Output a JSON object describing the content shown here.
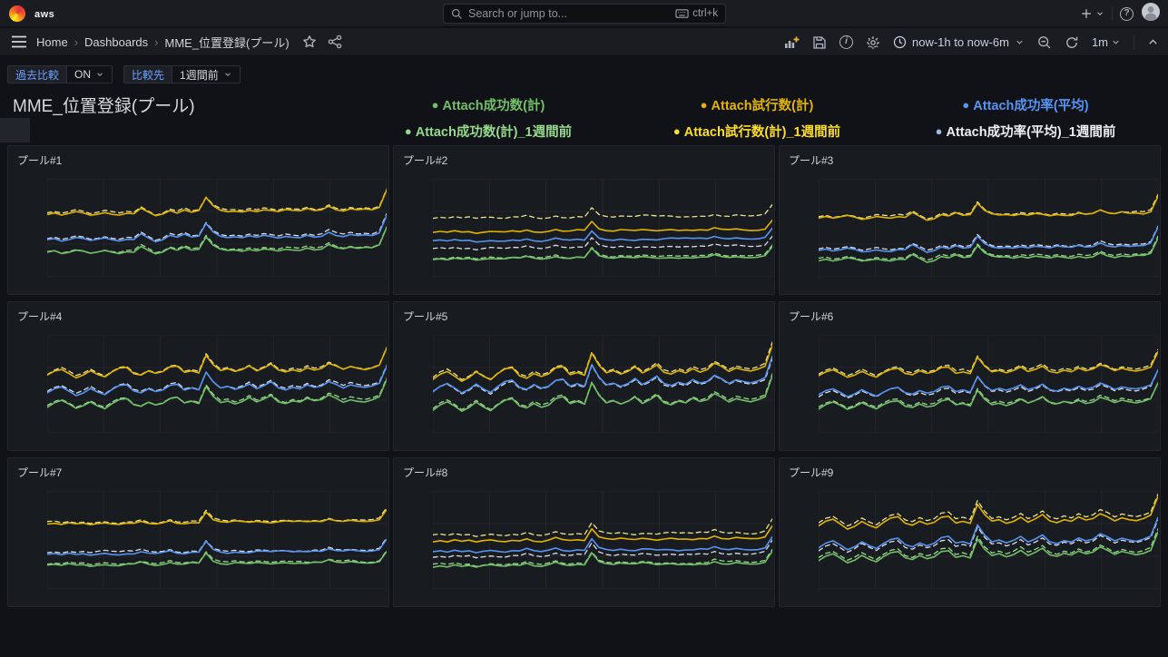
{
  "app": {
    "grafana_logo": "grafana-logo",
    "aws_logo_text": "aws",
    "plus_menu": "+",
    "help": "?"
  },
  "search": {
    "placeholder": "Search or jump to...",
    "shortcut": "ctrl+k"
  },
  "breadcrumb": {
    "items": [
      "Home",
      "Dashboards",
      "MME_位置登録(プール)"
    ],
    "separator": "›"
  },
  "toolbar": {
    "time_range": "now-1h to now-6m",
    "refresh_interval": "1m"
  },
  "controls": {
    "compare_label": "過去比較",
    "compare_value": "ON",
    "target_label": "比較先",
    "target_value": "1週間前"
  },
  "page": {
    "title": "MME_位置登録(プール)"
  },
  "legend": {
    "rows": [
      [
        {
          "label": "Attach成功数(計)",
          "color": "#73BF69"
        },
        {
          "label": "Attach試行数(計)",
          "color": "#E0B400"
        },
        {
          "label": "Attach成功率(平均)",
          "color": "#5794F2"
        }
      ],
      [
        {
          "label": "Attach成功数(計)_1週間前",
          "color": "#96D98D"
        },
        {
          "label": "Attach試行数(計)_1週間前",
          "color": "#FADE2A"
        },
        {
          "label": "Attach成功率(平均)_1週間前",
          "color": "#EDEFF4",
          "bullet": "#9FB6DC"
        }
      ]
    ]
  },
  "chart_data": {
    "type": "line",
    "x_axis": "time, range now-1h to now-6m (no tick labels shown)",
    "y_axis": "hidden (no tick labels shown)",
    "grid": {
      "v_divisions": 6,
      "h_divisions": 3,
      "color": "#24262c"
    },
    "value_encoding": "frac = vertical center as fraction of plot height from top; pattern values are unitless deviations (positive = up), scaled by amp*amp_unit px",
    "amp_unit": 10,
    "patterns": {
      "A": [
        0.0,
        0.15,
        -0.1,
        0.05,
        0.25,
        0.1,
        -0.15,
        0.0,
        0.2,
        0.05,
        -0.05,
        0.15,
        0.1,
        0.7,
        0.25,
        -0.2,
        0.0,
        0.45,
        0.2,
        0.55,
        0.25,
        0.4,
        1.8,
        0.9,
        0.45,
        0.3,
        0.35,
        0.25,
        0.45,
        0.3,
        0.5,
        0.4,
        0.25,
        0.45,
        0.35,
        0.3,
        0.55,
        0.35,
        0.45,
        0.9,
        0.55,
        0.4,
        0.6,
        0.45,
        0.55,
        0.5,
        0.8,
        2.7
      ],
      "B": [
        0.0,
        0.1,
        -0.05,
        0.15,
        0.0,
        0.1,
        -0.1,
        0.05,
        0.15,
        0.05,
        0.0,
        0.15,
        0.1,
        0.35,
        0.1,
        0.0,
        0.15,
        0.4,
        0.15,
        0.1,
        0.25,
        0.2,
        1.5,
        0.55,
        0.3,
        0.2,
        0.35,
        0.25,
        0.2,
        0.35,
        0.3,
        0.2,
        0.3,
        0.35,
        0.25,
        0.3,
        0.25,
        0.35,
        0.3,
        0.6,
        0.35,
        0.3,
        0.45,
        0.35,
        0.3,
        0.35,
        0.55,
        1.8
      ],
      "C": [
        0.0,
        0.4,
        0.6,
        0.25,
        -0.15,
        0.1,
        0.5,
        0.15,
        -0.1,
        0.35,
        0.7,
        0.8,
        0.25,
        0.1,
        0.45,
        0.2,
        0.35,
        0.8,
        0.9,
        0.35,
        0.5,
        0.3,
        1.9,
        1.0,
        0.45,
        0.6,
        0.35,
        0.55,
        0.9,
        0.45,
        0.7,
        1.05,
        0.5,
        0.35,
        0.6,
        0.45,
        0.8,
        0.55,
        0.7,
        1.15,
        0.9,
        0.55,
        0.8,
        0.65,
        0.55,
        0.7,
        0.95,
        2.5
      ]
    },
    "panels": [
      {
        "title": "プール#1",
        "pattern": "A",
        "amp": 1.0,
        "series": [
          {
            "name": "Attach試行数(計)_1週間前",
            "color": "#EDE48E",
            "dash": true,
            "frac": 0.345
          },
          {
            "name": "Attach試行数(計)",
            "color": "#E0B400",
            "dash": false,
            "frac": 0.36
          },
          {
            "name": "Attach成功率(平均)_1週間前",
            "color": "#D9DEE8",
            "dash": true,
            "frac": 0.605
          },
          {
            "name": "Attach成功率(平均)",
            "color": "#5794F2",
            "dash": false,
            "frac": 0.62
          },
          {
            "name": "Attach成功数(計)_1週間前",
            "color": "#96D98D",
            "dash": true,
            "frac": 0.74
          },
          {
            "name": "Attach成功数(計)",
            "color": "#73BF69",
            "dash": false,
            "frac": 0.755
          }
        ]
      },
      {
        "title": "プール#2",
        "pattern": "B",
        "amp": 0.8,
        "series": [
          {
            "name": "Attach試行数(計)_1週間前",
            "color": "#EDE48E",
            "dash": true,
            "frac": 0.4
          },
          {
            "name": "Attach試行数(計)",
            "color": "#E0B400",
            "dash": false,
            "frac": 0.545
          },
          {
            "name": "Attach成功率(平均)_1週間前",
            "color": "#D9DEE8",
            "dash": true,
            "frac": 0.715
          },
          {
            "name": "Attach成功率(平均)",
            "color": "#5794F2",
            "dash": false,
            "frac": 0.635
          },
          {
            "name": "Attach成功数(計)_1週間前",
            "color": "#96D98D",
            "dash": true,
            "frac": 0.81
          },
          {
            "name": "Attach成功数(計)",
            "color": "#73BF69",
            "dash": false,
            "frac": 0.825
          }
        ]
      },
      {
        "title": "プール#3",
        "pattern": "A",
        "amp": 0.9,
        "series": [
          {
            "name": "Attach試行数(計)_1週間前",
            "color": "#EDE48E",
            "dash": true,
            "frac": 0.385
          },
          {
            "name": "Attach試行数(計)",
            "color": "#E0B400",
            "dash": false,
            "frac": 0.4
          },
          {
            "name": "Attach成功率(平均)_1週間前",
            "color": "#D9DEE8",
            "dash": true,
            "frac": 0.715
          },
          {
            "name": "Attach成功率(平均)",
            "color": "#5794F2",
            "dash": false,
            "frac": 0.73
          },
          {
            "name": "Attach成功数(計)_1週間前",
            "color": "#96D98D",
            "dash": true,
            "frac": 0.815
          },
          {
            "name": "Attach成功数(計)",
            "color": "#73BF69",
            "dash": false,
            "frac": 0.83
          }
        ]
      },
      {
        "title": "プール#4",
        "pattern": "C",
        "amp": 1.2,
        "series": [
          {
            "name": "Attach試行数(計)_1週間前",
            "color": "#EDE48E",
            "dash": true,
            "frac": 0.405
          },
          {
            "name": "Attach試行数(計)",
            "color": "#E0B400",
            "dash": false,
            "frac": 0.42
          },
          {
            "name": "Attach成功率(平均)_1週間前",
            "color": "#D9DEE8",
            "dash": true,
            "frac": 0.585
          },
          {
            "name": "Attach成功率(平均)",
            "color": "#5794F2",
            "dash": false,
            "frac": 0.6
          },
          {
            "name": "Attach成功数(計)_1週間前",
            "color": "#96D98D",
            "dash": true,
            "frac": 0.725
          },
          {
            "name": "Attach成功数(計)",
            "color": "#73BF69",
            "dash": false,
            "frac": 0.74
          }
        ]
      },
      {
        "title": "プール#5",
        "pattern": "C",
        "amp": 1.5,
        "series": [
          {
            "name": "Attach試行数(計)_1週間前",
            "color": "#EDE48E",
            "dash": true,
            "frac": 0.435
          },
          {
            "name": "Attach試行数(計)",
            "color": "#E0B400",
            "dash": false,
            "frac": 0.45
          },
          {
            "name": "Attach成功率(平均)_1週間前",
            "color": "#D9DEE8",
            "dash": true,
            "frac": 0.585
          },
          {
            "name": "Attach成功率(平均)",
            "color": "#5794F2",
            "dash": false,
            "frac": 0.57
          },
          {
            "name": "Attach成功数(計)_1週間前",
            "color": "#96D98D",
            "dash": true,
            "frac": 0.745
          },
          {
            "name": "Attach成功数(計)",
            "color": "#73BF69",
            "dash": false,
            "frac": 0.76
          }
        ]
      },
      {
        "title": "プール#6",
        "pattern": "C",
        "amp": 1.1,
        "series": [
          {
            "name": "Attach試行数(計)_1週間前",
            "color": "#EDE48E",
            "dash": true,
            "frac": 0.405
          },
          {
            "name": "Attach試行数(計)",
            "color": "#E0B400",
            "dash": false,
            "frac": 0.42
          },
          {
            "name": "Attach成功率(平均)_1週間前",
            "color": "#D9DEE8",
            "dash": true,
            "frac": 0.625
          },
          {
            "name": "Attach成功率(平均)",
            "color": "#5794F2",
            "dash": false,
            "frac": 0.61
          },
          {
            "name": "Attach成功数(計)_1週間前",
            "color": "#96D98D",
            "dash": true,
            "frac": 0.735
          },
          {
            "name": "Attach成功数(計)",
            "color": "#73BF69",
            "dash": false,
            "frac": 0.75
          }
        ]
      },
      {
        "title": "プール#7",
        "pattern": "B",
        "amp": 0.9,
        "series": [
          {
            "name": "Attach試行数(計)_1週間前",
            "color": "#EDE48E",
            "dash": true,
            "frac": 0.325
          },
          {
            "name": "Attach試行数(計)",
            "color": "#E0B400",
            "dash": false,
            "frac": 0.34
          },
          {
            "name": "Attach成功率(平均)_1週間前",
            "color": "#D9DEE8",
            "dash": true,
            "frac": 0.63
          },
          {
            "name": "Attach成功率(平均)",
            "color": "#5794F2",
            "dash": false,
            "frac": 0.645
          },
          {
            "name": "Attach成功数(計)_1週間前",
            "color": "#96D98D",
            "dash": true,
            "frac": 0.745
          },
          {
            "name": "Attach成功数(計)",
            "color": "#73BF69",
            "dash": false,
            "frac": 0.76
          }
        ]
      },
      {
        "title": "プール#8",
        "pattern": "B",
        "amp": 1.0,
        "series": [
          {
            "name": "Attach試行数(計)_1週間前",
            "color": "#EDE48E",
            "dash": true,
            "frac": 0.455
          },
          {
            "name": "Attach試行数(計)",
            "color": "#E0B400",
            "dash": false,
            "frac": 0.515
          },
          {
            "name": "Attach成功率(平均)_1週間前",
            "color": "#D9DEE8",
            "dash": true,
            "frac": 0.67
          },
          {
            "name": "Attach成功率(平均)",
            "color": "#5794F2",
            "dash": false,
            "frac": 0.625
          },
          {
            "name": "Attach成功数(計)_1週間前",
            "color": "#96D98D",
            "dash": true,
            "frac": 0.755
          },
          {
            "name": "Attach成功数(計)",
            "color": "#73BF69",
            "dash": false,
            "frac": 0.77
          }
        ]
      },
      {
        "title": "プール#9",
        "pattern": "C",
        "amp": 1.3,
        "series": [
          {
            "name": "Attach試行数(計)_1週間前",
            "color": "#EDE48E",
            "dash": true,
            "frac": 0.33
          },
          {
            "name": "Attach試行数(計)",
            "color": "#E0B400",
            "dash": false,
            "frac": 0.365
          },
          {
            "name": "Attach成功率(平均)_1週間前",
            "color": "#D9DEE8",
            "dash": true,
            "frac": 0.6
          },
          {
            "name": "Attach成功率(平均)",
            "color": "#5794F2",
            "dash": false,
            "frac": 0.575
          },
          {
            "name": "Attach成功数(計)_1週間前",
            "color": "#96D98D",
            "dash": true,
            "frac": 0.69
          },
          {
            "name": "Attach成功数(計)",
            "color": "#73BF69",
            "dash": false,
            "frac": 0.715
          }
        ]
      }
    ]
  }
}
